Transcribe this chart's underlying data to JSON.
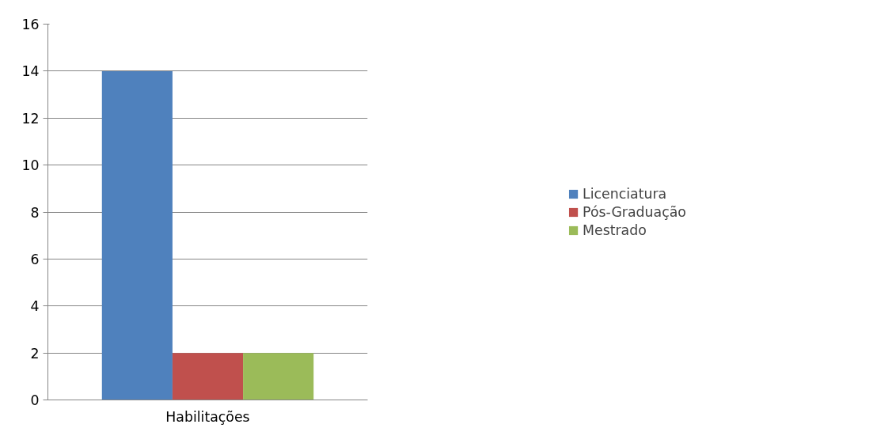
{
  "chart_data": {
    "type": "bar",
    "categories": [
      "Habilitações"
    ],
    "series": [
      {
        "name": "Licenciatura",
        "color": "#4f81bd",
        "values": [
          14
        ]
      },
      {
        "name": "Pós-Graduação",
        "color": "#c0504d",
        "values": [
          2
        ]
      },
      {
        "name": "Mestrado",
        "color": "#9bbb59",
        "values": [
          2
        ]
      }
    ],
    "ylim": [
      0,
      16
    ],
    "yticks": [
      0,
      2,
      4,
      6,
      8,
      10,
      12,
      14,
      16
    ],
    "grid": "y",
    "legend": "right"
  }
}
